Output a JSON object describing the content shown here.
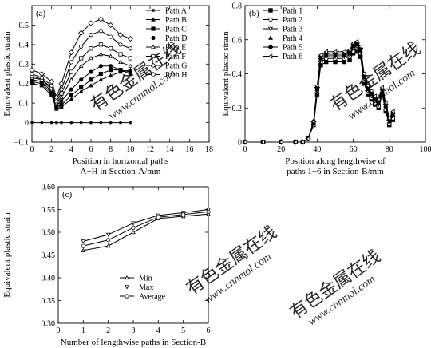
{
  "watermark": {
    "cn": "有色金属在线",
    "url": "www.cnnmol.com"
  },
  "chart_data": [
    {
      "type": "line",
      "panel_label": "(a)",
      "xlabel": [
        "Position in horizontal paths",
        "A−H in Section-A/mm"
      ],
      "ylabel": "Equivalent plastic strain",
      "xlim": [
        0,
        18
      ],
      "ylim": [
        -0.1,
        0.6
      ],
      "xticks": [
        "0",
        "2",
        "4",
        "6",
        "8",
        "10",
        "12",
        "14",
        "16",
        "18"
      ],
      "yticks": [
        "−0.1",
        "0",
        "0.1",
        "0.2",
        "0.3",
        "0.4",
        "0.5"
      ],
      "legend_position": "top-right",
      "series": [
        {
          "name": "Path A",
          "marker": "star",
          "x": [
            0,
            1,
            2,
            2.5,
            3,
            4,
            5,
            6,
            7,
            8,
            9,
            10
          ],
          "y": [
            0,
            0,
            0,
            0,
            0,
            0,
            0,
            0,
            0,
            0,
            0,
            0
          ]
        },
        {
          "name": "Path B",
          "marker": "triangle-filled",
          "x": [
            0,
            1,
            2,
            2.5,
            3,
            4,
            5,
            6,
            7,
            8,
            9,
            10
          ],
          "y": [
            0.2,
            0.19,
            0.14,
            0.07,
            0.08,
            0.12,
            0.16,
            0.19,
            0.22,
            0.24,
            0.26,
            0.27
          ]
        },
        {
          "name": "Path C",
          "marker": "square-filled",
          "x": [
            0,
            1,
            2,
            2.5,
            3,
            4,
            5,
            6,
            7,
            8,
            9,
            10
          ],
          "y": [
            0.21,
            0.2,
            0.15,
            0.08,
            0.09,
            0.14,
            0.18,
            0.22,
            0.25,
            0.27,
            0.27,
            0.26
          ]
        },
        {
          "name": "Path D",
          "marker": "circle-filled",
          "x": [
            0,
            1,
            2,
            2.5,
            3,
            4,
            5,
            6,
            7,
            8,
            9,
            10
          ],
          "y": [
            0.22,
            0.21,
            0.16,
            0.09,
            0.11,
            0.17,
            0.22,
            0.26,
            0.29,
            0.29,
            0.27,
            0.25
          ]
        },
        {
          "name": "Path E",
          "marker": "triangle-open",
          "x": [
            0,
            1,
            2,
            2.5,
            3,
            4,
            5,
            6,
            7,
            8,
            9,
            10
          ],
          "y": [
            0.23,
            0.22,
            0.17,
            0.1,
            0.13,
            0.22,
            0.29,
            0.33,
            0.35,
            0.34,
            0.31,
            0.29
          ]
        },
        {
          "name": "Path F",
          "marker": "square-open",
          "x": [
            0,
            1,
            2,
            2.5,
            3,
            4,
            5,
            6,
            7,
            8,
            9,
            10
          ],
          "y": [
            0.24,
            0.22,
            0.18,
            0.11,
            0.15,
            0.26,
            0.33,
            0.38,
            0.4,
            0.38,
            0.35,
            0.33
          ]
        },
        {
          "name": "Path G",
          "marker": "circle-open",
          "x": [
            0,
            1,
            2,
            2.5,
            3,
            4,
            5,
            6,
            7,
            8,
            9,
            10
          ],
          "y": [
            0.25,
            0.23,
            0.19,
            0.12,
            0.17,
            0.31,
            0.39,
            0.45,
            0.47,
            0.44,
            0.4,
            0.38
          ]
        },
        {
          "name": "Path H",
          "marker": "diamond-open",
          "x": [
            0,
            1,
            2,
            2.5,
            3,
            4,
            5,
            6,
            7,
            8,
            9,
            10
          ],
          "y": [
            0.27,
            0.25,
            0.21,
            0.13,
            0.2,
            0.36,
            0.46,
            0.51,
            0.53,
            0.5,
            0.45,
            0.43
          ]
        }
      ]
    },
    {
      "type": "line",
      "panel_label": "(b)",
      "xlabel": [
        "Position along lengthwise of",
        "paths 1−6 in Section-B/mm"
      ],
      "ylabel": "Equivalent plastic strain",
      "xlim": [
        0,
        100
      ],
      "ylim": [
        0,
        0.8
      ],
      "xticks": [
        "0",
        "20",
        "40",
        "60",
        "80",
        "100"
      ],
      "yticks": [
        "0",
        "0.2",
        "0.4",
        "0.6",
        "0.8"
      ],
      "legend_position": "top-left",
      "series": [
        {
          "name": "Path 1",
          "marker": "square-filled",
          "x": [
            0,
            10,
            20,
            28,
            32,
            35,
            38,
            40,
            42,
            45,
            50,
            55,
            58,
            60,
            62,
            64,
            66,
            68,
            70,
            72,
            74,
            76,
            78,
            80,
            82
          ],
          "y": [
            0,
            0,
            0,
            0,
            0,
            0.02,
            0.1,
            0.28,
            0.45,
            0.47,
            0.47,
            0.47,
            0.48,
            0.52,
            0.53,
            0.5,
            0.35,
            0.28,
            0.25,
            0.22,
            0.2,
            0.28,
            0.18,
            0.1,
            0.13
          ]
        },
        {
          "name": "Path 2",
          "marker": "circle-open",
          "x": [
            0,
            10,
            20,
            28,
            32,
            35,
            38,
            40,
            42,
            45,
            50,
            55,
            58,
            60,
            62,
            64,
            66,
            68,
            70,
            72,
            74,
            76,
            78,
            80,
            82
          ],
          "y": [
            0,
            0,
            0,
            0,
            0,
            0.02,
            0.1,
            0.29,
            0.47,
            0.49,
            0.49,
            0.49,
            0.5,
            0.53,
            0.55,
            0.52,
            0.36,
            0.29,
            0.26,
            0.23,
            0.21,
            0.29,
            0.19,
            0.11,
            0.14
          ]
        },
        {
          "name": "Path 3",
          "marker": "triangle-down-open",
          "x": [
            0,
            10,
            20,
            28,
            32,
            35,
            38,
            40,
            42,
            45,
            50,
            55,
            58,
            60,
            62,
            64,
            66,
            68,
            70,
            72,
            74,
            76,
            78,
            80,
            82
          ],
          "y": [
            0,
            0,
            0,
            0,
            0,
            0.02,
            0.11,
            0.3,
            0.48,
            0.5,
            0.5,
            0.5,
            0.51,
            0.55,
            0.56,
            0.53,
            0.37,
            0.3,
            0.27,
            0.24,
            0.22,
            0.3,
            0.2,
            0.12,
            0.15
          ]
        },
        {
          "name": "Path 4",
          "marker": "triangle-filled",
          "x": [
            0,
            10,
            20,
            28,
            32,
            35,
            38,
            40,
            42,
            45,
            50,
            55,
            58,
            60,
            62,
            64,
            66,
            68,
            70,
            72,
            74,
            76,
            78,
            80,
            82
          ],
          "y": [
            0,
            0,
            0,
            0,
            0,
            0.02,
            0.11,
            0.31,
            0.49,
            0.51,
            0.51,
            0.51,
            0.52,
            0.56,
            0.57,
            0.54,
            0.38,
            0.31,
            0.28,
            0.25,
            0.23,
            0.3,
            0.21,
            0.12,
            0.16
          ]
        },
        {
          "name": "Path 5",
          "marker": "diamond-filled",
          "x": [
            0,
            10,
            20,
            28,
            32,
            35,
            38,
            40,
            42,
            45,
            50,
            55,
            58,
            60,
            62,
            64,
            66,
            68,
            70,
            72,
            74,
            76,
            78,
            80,
            82
          ],
          "y": [
            0,
            0,
            0,
            0,
            0,
            0.02,
            0.12,
            0.32,
            0.5,
            0.52,
            0.52,
            0.52,
            0.53,
            0.57,
            0.58,
            0.55,
            0.39,
            0.32,
            0.29,
            0.26,
            0.24,
            0.31,
            0.22,
            0.13,
            0.17
          ]
        },
        {
          "name": "Path 6",
          "marker": "triangle-left-open",
          "x": [
            0,
            10,
            20,
            28,
            32,
            35,
            38,
            40,
            42,
            45,
            50,
            55,
            58,
            60,
            62,
            64,
            66,
            68,
            70,
            72,
            74,
            76,
            78,
            80,
            82
          ],
          "y": [
            0,
            0,
            0,
            0,
            0,
            0.02,
            0.12,
            0.33,
            0.51,
            0.53,
            0.53,
            0.53,
            0.54,
            0.58,
            0.59,
            0.56,
            0.4,
            0.33,
            0.3,
            0.27,
            0.25,
            0.32,
            0.23,
            0.14,
            0.18
          ]
        }
      ]
    },
    {
      "type": "line",
      "panel_label": "(c)",
      "xlabel": "Number of lengthwise paths in Section-B",
      "ylabel": "Equivalent plastic strain",
      "xlim": [
        0,
        6
      ],
      "ylim": [
        0.3,
        0.6
      ],
      "xticks": [
        "0",
        "1",
        "2",
        "3",
        "4",
        "5",
        "6"
      ],
      "yticks": [
        "0.30",
        "0.35",
        "0.40",
        "0.45",
        "0.50",
        "0.55",
        "0.60"
      ],
      "legend_position": "lower-center",
      "series": [
        {
          "name": "Min",
          "marker": "triangle-open",
          "x": [
            1,
            2,
            3,
            4,
            5,
            6
          ],
          "y": [
            0.46,
            0.47,
            0.5,
            0.53,
            0.535,
            0.54
          ]
        },
        {
          "name": "Max",
          "marker": "triangle-down-open",
          "x": [
            1,
            2,
            3,
            4,
            5,
            6
          ],
          "y": [
            0.48,
            0.495,
            0.52,
            0.537,
            0.543,
            0.55
          ]
        },
        {
          "name": "Average",
          "marker": "circle-open",
          "x": [
            1,
            2,
            3,
            4,
            5,
            6
          ],
          "y": [
            0.47,
            0.483,
            0.51,
            0.533,
            0.539,
            0.545
          ]
        }
      ]
    }
  ]
}
